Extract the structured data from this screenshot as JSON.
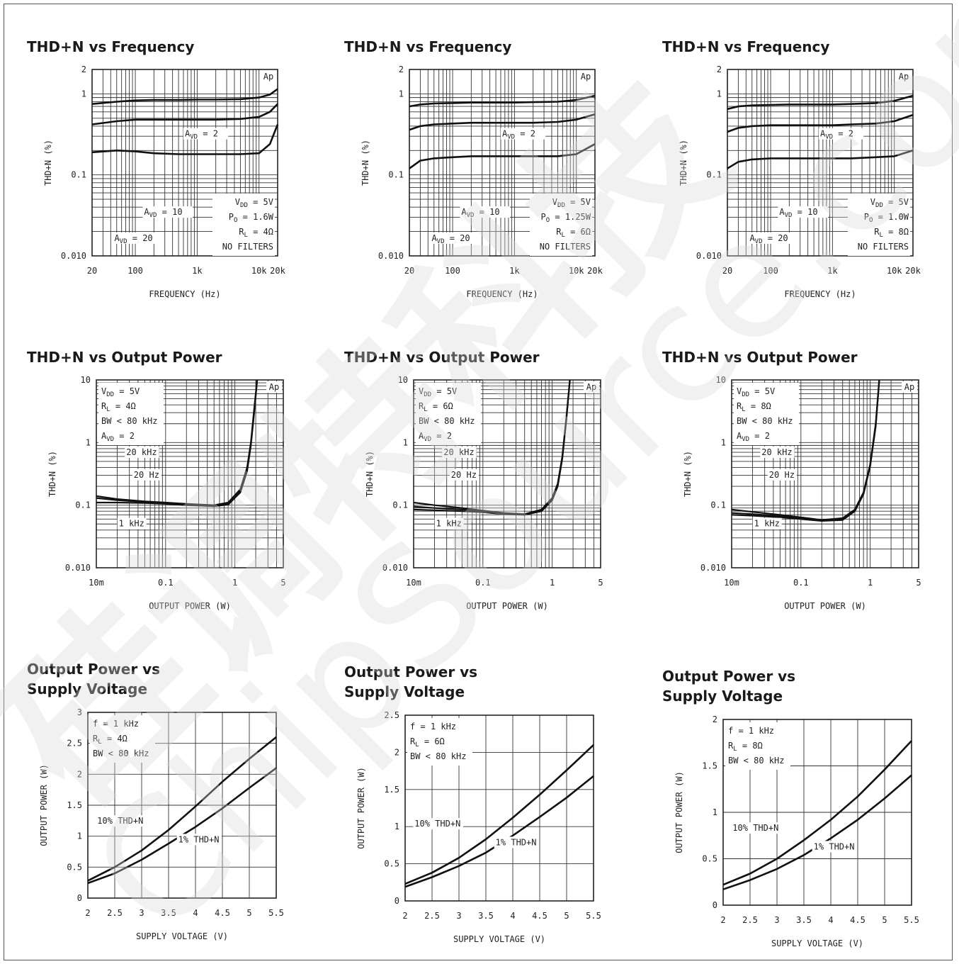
{
  "charts": [
    {
      "title": "THD+N vs Frequency",
      "watermark_tag": "Ap",
      "legend_lines": [
        "V_DD = 5V",
        "P_O = 1.6W",
        "R_L = 4Ω",
        "NO FILTERS"
      ],
      "curve_labels": [
        "A_VD = 2",
        "A_VD = 10",
        "A_VD = 20"
      ],
      "chart_data": {
        "type": "line",
        "title": "THD+N vs Frequency",
        "xlabel": "FREQUENCY (Hz)",
        "ylabel": "THD+N (%)",
        "x_scale": "log",
        "y_scale": "log",
        "xlim": [
          20,
          20000
        ],
        "ylim": [
          0.01,
          2
        ],
        "xticks": [
          "20",
          "100",
          "1k",
          "10k",
          "20k"
        ],
        "yticks": [
          "0.010",
          "0.1",
          "1",
          "2"
        ],
        "x": [
          20,
          50,
          100,
          200,
          500,
          1000,
          2000,
          5000,
          10000,
          15000,
          20000
        ],
        "series": [
          {
            "name": "A_VD = 20",
            "values": [
              0.75,
              0.8,
              0.83,
              0.84,
              0.84,
              0.85,
              0.85,
              0.86,
              0.9,
              0.98,
              1.15
            ]
          },
          {
            "name": "A_VD = 10",
            "values": [
              0.42,
              0.46,
              0.48,
              0.48,
              0.48,
              0.48,
              0.48,
              0.49,
              0.52,
              0.6,
              0.75
            ]
          },
          {
            "name": "A_VD = 2",
            "values": [
              0.19,
              0.2,
              0.195,
              0.185,
              0.18,
              0.18,
              0.18,
              0.18,
              0.185,
              0.24,
              0.42
            ]
          }
        ]
      }
    },
    {
      "title": "THD+N vs Frequency",
      "watermark_tag": "Ap",
      "legend_lines": [
        "V_DD = 5V",
        "P_O = 1.25W",
        "R_L = 6Ω",
        "NO FILTERS"
      ],
      "curve_labels": [
        "A_VD = 2",
        "A_VD = 10",
        "A_VD = 20"
      ],
      "chart_data": {
        "type": "line",
        "title": "THD+N vs Frequency",
        "xlabel": "FREQUENCY (Hz)",
        "ylabel": "THD+N (%)",
        "x_scale": "log",
        "y_scale": "log",
        "xlim": [
          20,
          20000
        ],
        "ylim": [
          0.01,
          2
        ],
        "xticks": [
          "20",
          "100",
          "1k",
          "10k",
          "20k"
        ],
        "yticks": [
          "0.010",
          "0.1",
          "1",
          "2"
        ],
        "x": [
          20,
          30,
          50,
          100,
          200,
          500,
          1000,
          2000,
          5000,
          10000,
          20000
        ],
        "series": [
          {
            "name": "A_VD = 20",
            "values": [
              0.7,
              0.74,
              0.76,
              0.77,
              0.78,
              0.78,
              0.78,
              0.79,
              0.8,
              0.84,
              0.95
            ]
          },
          {
            "name": "A_VD = 10",
            "values": [
              0.36,
              0.4,
              0.42,
              0.43,
              0.44,
              0.44,
              0.44,
              0.44,
              0.45,
              0.48,
              0.56
            ]
          },
          {
            "name": "A_VD = 2",
            "values": [
              0.12,
              0.15,
              0.16,
              0.165,
              0.17,
              0.17,
              0.17,
              0.17,
              0.17,
              0.18,
              0.24
            ]
          }
        ]
      }
    },
    {
      "title": "THD+N vs Frequency",
      "watermark_tag": "Ap",
      "legend_lines": [
        "V_DD = 5V",
        "P_O = 1.0W",
        "R_L = 8Ω",
        "NO FILTERS"
      ],
      "curve_labels": [
        "A_VD = 2",
        "A_VD = 10",
        "A_VD = 20"
      ],
      "chart_data": {
        "type": "line",
        "title": "THD+N vs Frequency",
        "xlabel": "FREQUENCY (Hz)",
        "ylabel": "THD+N (%)",
        "x_scale": "log",
        "y_scale": "log",
        "xlim": [
          20,
          20000
        ],
        "ylim": [
          0.01,
          2
        ],
        "xticks": [
          "20",
          "100",
          "1k",
          "10k",
          "20k"
        ],
        "yticks": [
          "0.010",
          "0.1",
          "1",
          "2"
        ],
        "x": [
          20,
          30,
          50,
          100,
          200,
          500,
          1000,
          2000,
          5000,
          10000,
          20000
        ],
        "series": [
          {
            "name": "A_VD = 20",
            "values": [
              0.65,
              0.7,
              0.72,
              0.73,
              0.74,
              0.74,
              0.74,
              0.75,
              0.77,
              0.82,
              0.95
            ]
          },
          {
            "name": "A_VD = 10",
            "values": [
              0.34,
              0.38,
              0.4,
              0.41,
              0.41,
              0.41,
              0.41,
              0.42,
              0.43,
              0.46,
              0.55
            ]
          },
          {
            "name": "A_VD = 2",
            "values": [
              0.12,
              0.145,
              0.155,
              0.16,
              0.16,
              0.16,
              0.16,
              0.16,
              0.165,
              0.17,
              0.2
            ]
          }
        ]
      }
    },
    {
      "title": "THD+N vs Output Power",
      "watermark_tag": "Ap",
      "legend_lines": [
        "V_DD = 5V",
        "R_L = 4Ω",
        "BW < 80 kHz",
        "A_VD = 2"
      ],
      "curve_labels": [
        "20 kHz",
        "20 Hz",
        "1 kHz"
      ],
      "chart_data": {
        "type": "line",
        "title": "THD+N vs Output Power",
        "xlabel": "OUTPUT POWER (W)",
        "ylabel": "THD+N (%)",
        "x_scale": "log",
        "y_scale": "log",
        "xlim": [
          0.01,
          5
        ],
        "ylim": [
          0.01,
          10
        ],
        "xticks": [
          "10m",
          "0.1",
          "1",
          "5"
        ],
        "yticks": [
          "0.010",
          "0.1",
          "1",
          "10"
        ],
        "x": [
          0.01,
          0.02,
          0.05,
          0.1,
          0.2,
          0.5,
          0.8,
          1.2,
          1.5,
          1.7,
          1.9,
          2.1
        ],
        "series": [
          {
            "name": "20 kHz",
            "values": [
              0.14,
              0.125,
              0.115,
              0.11,
              0.105,
              0.1,
              0.11,
              0.18,
              0.4,
              1.0,
              3.5,
              10
            ]
          },
          {
            "name": "20 Hz",
            "values": [
              0.13,
              0.12,
              0.112,
              0.108,
              0.103,
              0.098,
              0.105,
              0.17,
              0.38,
              0.95,
              3.2,
              10
            ]
          },
          {
            "name": "1 kHz",
            "values": [
              0.11,
              0.11,
              0.108,
              0.105,
              0.1,
              0.096,
              0.102,
              0.16,
              0.35,
              0.9,
              3.0,
              10
            ]
          }
        ]
      }
    },
    {
      "title": "THD+N vs Output Power",
      "watermark_tag": "Ap",
      "legend_lines": [
        "V_DD = 5V",
        "R_L = 6Ω",
        "BW < 80 kHz",
        "A_VD = 2"
      ],
      "curve_labels": [
        "20 kHz",
        "20 Hz",
        "1 kHz"
      ],
      "chart_data": {
        "type": "line",
        "title": "THD+N vs Output Power",
        "xlabel": "OUTPUT POWER (W)",
        "ylabel": "THD+N (%)",
        "x_scale": "log",
        "y_scale": "log",
        "xlim": [
          0.01,
          5
        ],
        "ylim": [
          0.01,
          10
        ],
        "xticks": [
          "10m",
          "0.1",
          "1",
          "5"
        ],
        "yticks": [
          "0.010",
          "0.1",
          "1",
          "10"
        ],
        "x": [
          0.01,
          0.02,
          0.05,
          0.1,
          0.2,
          0.4,
          0.7,
          1.0,
          1.2,
          1.4,
          1.6,
          1.8
        ],
        "series": [
          {
            "name": "20 kHz",
            "values": [
              0.11,
              0.1,
              0.09,
              0.082,
              0.075,
              0.072,
              0.085,
              0.13,
              0.22,
              0.6,
              2.5,
              10
            ]
          },
          {
            "name": "20 Hz",
            "values": [
              0.095,
              0.09,
              0.085,
              0.08,
              0.074,
              0.071,
              0.083,
              0.125,
              0.21,
              0.58,
              2.4,
              10
            ]
          },
          {
            "name": "1 kHz",
            "values": [
              0.085,
              0.083,
              0.08,
              0.077,
              0.072,
              0.07,
              0.08,
              0.12,
              0.2,
              0.55,
              2.3,
              10
            ]
          }
        ]
      }
    },
    {
      "title": "THD+N vs Output Power",
      "watermark_tag": "Ap",
      "legend_lines": [
        "V_DD = 5V",
        "R_L = 8Ω",
        "BW < 80 kHz",
        "A_VD = 2"
      ],
      "curve_labels": [
        "20 kHz",
        "20 Hz",
        "1 kHz"
      ],
      "chart_data": {
        "type": "line",
        "title": "THD+N vs Output Power",
        "xlabel": "OUTPUT POWER (W)",
        "ylabel": "THD+N (%)",
        "x_scale": "log",
        "y_scale": "log",
        "xlim": [
          0.01,
          5
        ],
        "ylim": [
          0.01,
          10
        ],
        "xticks": [
          "10m",
          "0.1",
          "1",
          "5"
        ],
        "yticks": [
          "0.010",
          "0.1",
          "1",
          "10"
        ],
        "x": [
          0.01,
          0.02,
          0.05,
          0.1,
          0.2,
          0.4,
          0.6,
          0.8,
          1.0,
          1.2,
          1.35
        ],
        "series": [
          {
            "name": "20 kHz",
            "values": [
              0.085,
              0.078,
              0.07,
              0.064,
              0.058,
              0.062,
              0.085,
              0.16,
              0.45,
              2.0,
              10
            ]
          },
          {
            "name": "20 Hz",
            "values": [
              0.075,
              0.072,
              0.067,
              0.062,
              0.057,
              0.06,
              0.082,
              0.155,
              0.44,
              1.9,
              10
            ]
          },
          {
            "name": "1 kHz",
            "values": [
              0.07,
              0.068,
              0.064,
              0.06,
              0.056,
              0.058,
              0.08,
              0.15,
              0.42,
              1.8,
              10
            ]
          }
        ]
      }
    },
    {
      "title": "Output Power vs Supply Voltage",
      "title_lines": [
        "Output Power vs",
        "Supply Voltage"
      ],
      "legend_lines": [
        "f = 1 kHz",
        "R_L = 4Ω",
        "BW < 80 kHz"
      ],
      "curve_labels": [
        "10% THD+N",
        "1% THD+N"
      ],
      "chart_data": {
        "type": "line",
        "title": "Output Power vs Supply Voltage",
        "xlabel": "SUPPLY VOLTAGE (V)",
        "ylabel": "OUTPUT POWER (W)",
        "xlim": [
          2,
          5.5
        ],
        "ylim": [
          0,
          3
        ],
        "xticks": [
          "2",
          "2.5",
          "3",
          "3.5",
          "4",
          "4.5",
          "5",
          "5.5"
        ],
        "yticks": [
          "0",
          "0.5",
          "1",
          "1.5",
          "2",
          "2.5",
          "3"
        ],
        "x": [
          2,
          2.5,
          3,
          3.5,
          4,
          4.5,
          5,
          5.5
        ],
        "series": [
          {
            "name": "10% THD+N",
            "values": [
              0.28,
              0.5,
              0.77,
              1.1,
              1.48,
              1.88,
              2.25,
              2.6
            ]
          },
          {
            "name": "1% THD+N",
            "values": [
              0.24,
              0.4,
              0.62,
              0.88,
              1.15,
              1.45,
              1.78,
              2.1
            ]
          }
        ]
      }
    },
    {
      "title": "Output Power vs Supply Voltage",
      "title_lines": [
        "Output Power vs",
        "Supply Voltage"
      ],
      "legend_lines": [
        "f = 1 kHz",
        "R_L = 6Ω",
        "BW < 80 kHz"
      ],
      "curve_labels": [
        "10% THD+N",
        "1% THD+N"
      ],
      "chart_data": {
        "type": "line",
        "title": "Output Power vs Supply Voltage",
        "xlabel": "SUPPLY VOLTAGE (V)",
        "ylabel": "OUTPUT POWER (W)",
        "xlim": [
          2,
          5.5
        ],
        "ylim": [
          0,
          2.5
        ],
        "xticks": [
          "2",
          "2.5",
          "3",
          "3.5",
          "4",
          "4.5",
          "5",
          "5.5"
        ],
        "yticks": [
          "0",
          "0.5",
          "1",
          "1.5",
          "2",
          "2.5"
        ],
        "x": [
          2,
          2.5,
          3,
          3.5,
          4,
          4.5,
          5,
          5.5
        ],
        "series": [
          {
            "name": "10% THD+N",
            "values": [
              0.23,
              0.38,
              0.58,
              0.83,
              1.12,
              1.43,
              1.76,
              2.1
            ]
          },
          {
            "name": "1% THD+N",
            "values": [
              0.19,
              0.32,
              0.47,
              0.65,
              0.88,
              1.13,
              1.39,
              1.68
            ]
          }
        ]
      }
    },
    {
      "title": "Output Power vs Supply Voltage",
      "title_lines": [
        "Output Power vs",
        "Supply Voltage"
      ],
      "legend_lines": [
        "f = 1 kHz",
        "R_L = 8Ω",
        "BW < 80 kHz"
      ],
      "curve_labels": [
        "10% THD+N",
        "1% THD+N"
      ],
      "chart_data": {
        "type": "line",
        "title": "Output Power vs Supply Voltage",
        "xlabel": "SUPPLY VOLTAGE (V)",
        "ylabel": "OUTPUT POWER (W)",
        "xlim": [
          2,
          5.5
        ],
        "ylim": [
          0,
          2
        ],
        "xticks": [
          "2",
          "2.5",
          "3",
          "3.5",
          "4",
          "4.5",
          "5",
          "5.5"
        ],
        "yticks": [
          "0",
          "0.5",
          "1",
          "1.5",
          "2"
        ],
        "x": [
          2,
          2.5,
          3,
          3.5,
          4,
          4.5,
          5,
          5.5
        ],
        "series": [
          {
            "name": "10% THD+N",
            "values": [
              0.22,
              0.34,
              0.5,
              0.7,
              0.92,
              1.17,
              1.46,
              1.77
            ]
          },
          {
            "name": "1% THD+N",
            "values": [
              0.17,
              0.27,
              0.39,
              0.54,
              0.72,
              0.92,
              1.15,
              1.4
            ]
          }
        ]
      }
    }
  ],
  "watermark": {
    "cn": "硅调特科技",
    "en": "ChipSource.com"
  }
}
